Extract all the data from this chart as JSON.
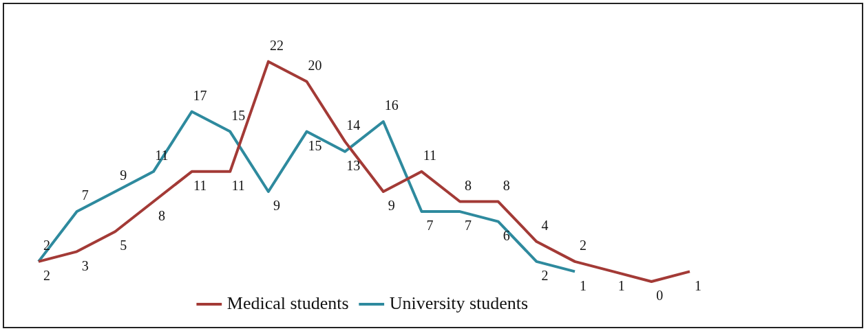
{
  "chart_data": {
    "type": "line",
    "categories": [
      null,
      null,
      null,
      null,
      null,
      null,
      null,
      null,
      null,
      null,
      null,
      null,
      null,
      null,
      null,
      null,
      null,
      null
    ],
    "series": [
      {
        "name": "Medical students",
        "color": "#a33a36",
        "values": [
          2,
          3,
          5,
          8,
          11,
          11,
          22,
          20,
          14,
          9,
          11,
          8,
          8,
          4,
          2,
          1,
          0,
          1
        ]
      },
      {
        "name": "University students",
        "color": "#2e8a9e",
        "values": [
          2,
          7,
          9,
          11,
          17,
          15,
          9,
          15,
          13,
          16,
          7,
          7,
          6,
          2,
          1,
          null,
          null,
          null
        ]
      }
    ],
    "data_labels": true,
    "tick_labels": false,
    "legend": "bottom",
    "marker": "none",
    "line_style": "solid"
  }
}
